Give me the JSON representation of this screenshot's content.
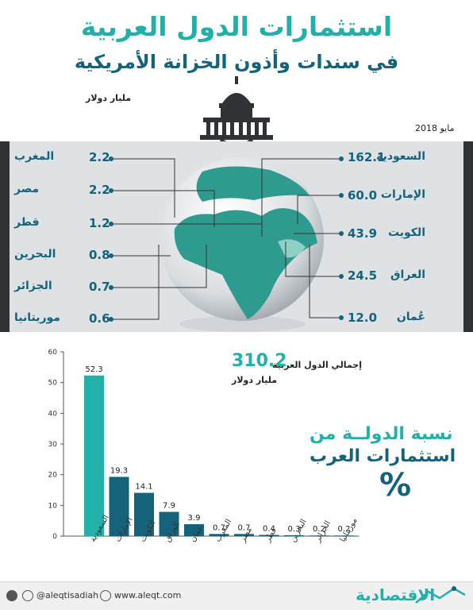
{
  "header": {
    "title": "استثمارات الدول العربية",
    "subtitle": "في سندات وأذون الخزانة الأمريكية",
    "unit": "مليار دولار",
    "date": "مايو 2018"
  },
  "holdings_right": [
    {
      "name": "السعودية",
      "value": "162.1"
    },
    {
      "name": "الإمارات",
      "value": "60.0"
    },
    {
      "name": "الكويت",
      "value": "43.9"
    },
    {
      "name": "العراق",
      "value": "24.5"
    },
    {
      "name": "عُمان",
      "value": "12.0"
    }
  ],
  "holdings_left": [
    {
      "name": "المغرب",
      "value": "2.2"
    },
    {
      "name": "مصر",
      "value": "2.2"
    },
    {
      "name": "قطر",
      "value": "1.2"
    },
    {
      "name": "البحرين",
      "value": "0.8"
    },
    {
      "name": "الجزائر",
      "value": "0.7"
    },
    {
      "name": "موريتانيا",
      "value": "0.6"
    }
  ],
  "total": {
    "label": "إجمالي الدول العربية",
    "value": "310.2",
    "unit": "مليار دولار"
  },
  "share": {
    "title_line1": "نسبة الدولــة من",
    "title_line2": "استثمارات العرب",
    "percent_sign": "%"
  },
  "chart_data": {
    "type": "bar",
    "categories": [
      "السعودية",
      "الإمارات",
      "الكويت",
      "العراق",
      "عمان",
      "المغرب",
      "مصر",
      "قطر",
      "البحرين",
      "الجزائر",
      "موريتانيا"
    ],
    "values": [
      52.3,
      19.3,
      14.1,
      7.9,
      3.9,
      0.7,
      0.7,
      0.4,
      0.3,
      0.2,
      0.2
    ],
    "value_labels": [
      "52.3",
      "19.3",
      "14.1",
      "7.9",
      "3.9",
      "0.7",
      "0.7",
      "0.4",
      "0.3",
      "0.2",
      "0.2"
    ],
    "yticks": [
      0,
      10,
      20,
      30,
      40,
      50,
      60
    ],
    "ylim": [
      0,
      60
    ],
    "colors": {
      "first": "#22b0a8",
      "rest": "#14637a"
    },
    "title": "",
    "xlabel": "",
    "ylabel": ""
  },
  "footer": {
    "twitter": "@aleqtisadiah",
    "website": "www.aleqt.com",
    "logo": "الاقتصادية"
  },
  "colors": {
    "teal": "#22b0a8",
    "navy": "#14637a",
    "band": "#dfe2e4"
  }
}
